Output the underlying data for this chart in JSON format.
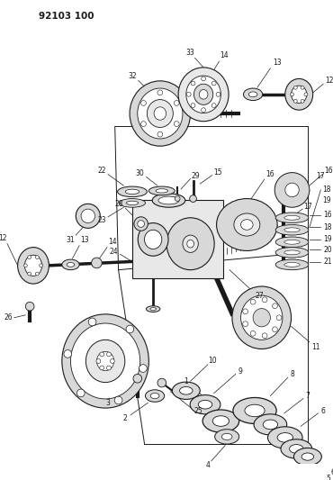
{
  "title_code": "92103 100",
  "bg": "#ffffff",
  "fw": 3.7,
  "fh": 5.33,
  "dpi": 100
}
